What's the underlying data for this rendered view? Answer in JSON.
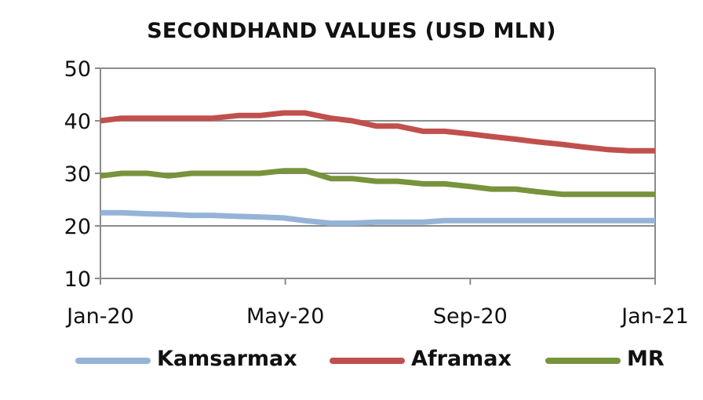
{
  "chart_data": {
    "type": "line",
    "title": "SECONDHAND VALUES (USD MLN)",
    "xlabel": "",
    "ylabel": "",
    "x": [
      "2020-01-01",
      "2020-01-15",
      "2020-02-01",
      "2020-02-15",
      "2020-03-01",
      "2020-03-15",
      "2020-04-01",
      "2020-04-15",
      "2020-05-01",
      "2020-05-15",
      "2020-06-01",
      "2020-06-15",
      "2020-07-01",
      "2020-07-15",
      "2020-08-01",
      "2020-08-15",
      "2020-09-01",
      "2020-09-15",
      "2020-10-01",
      "2020-10-15",
      "2020-11-01",
      "2020-11-15",
      "2020-12-01",
      "2020-12-15",
      "2021-01-01"
    ],
    "x_ticks": [
      "Jan-20",
      "May-20",
      "Sep-20",
      "Jan-21"
    ],
    "ylim": [
      10,
      50
    ],
    "y_ticks": [
      "10",
      "20",
      "30",
      "40",
      "50"
    ],
    "grid": "horizontal",
    "legend_position": "bottom",
    "series": [
      {
        "name": "Kamsarmax",
        "color": "#95b3d7",
        "values": [
          22.5,
          22.5,
          22.3,
          22.2,
          22.0,
          22.0,
          21.8,
          21.7,
          21.5,
          21.0,
          20.5,
          20.5,
          20.7,
          20.7,
          20.7,
          21.0,
          21.0,
          21.0,
          21.0,
          21.0,
          21.0,
          21.0,
          21.0,
          21.0,
          21.0
        ]
      },
      {
        "name": "Aframax",
        "color": "#c0504d",
        "values": [
          40.0,
          40.5,
          40.5,
          40.5,
          40.5,
          40.5,
          41.0,
          41.0,
          41.5,
          41.5,
          40.5,
          40.0,
          39.0,
          39.0,
          38.0,
          38.0,
          37.5,
          37.0,
          36.5,
          36.0,
          35.5,
          35.0,
          34.5,
          34.3,
          34.3
        ]
      },
      {
        "name": "MR",
        "color": "#77933c",
        "values": [
          29.5,
          30.0,
          30.0,
          29.5,
          30.0,
          30.0,
          30.0,
          30.0,
          30.5,
          30.5,
          29.0,
          29.0,
          28.5,
          28.5,
          28.0,
          28.0,
          27.5,
          27.0,
          27.0,
          26.5,
          26.0,
          26.0,
          26.0,
          26.0,
          26.0
        ]
      }
    ]
  }
}
